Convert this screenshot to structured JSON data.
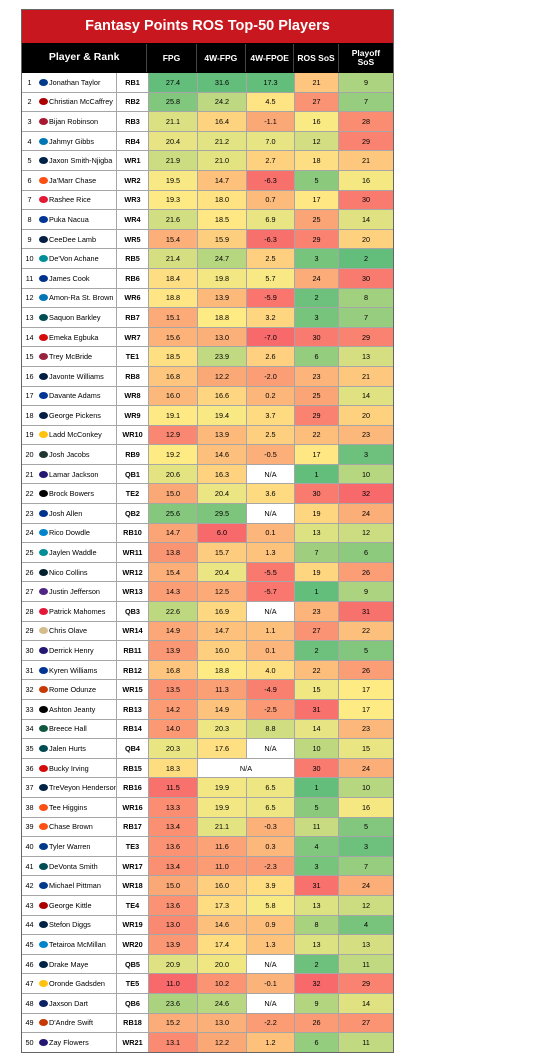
{
  "title": "Fantasy Points ROS Top-50 Players",
  "headers": {
    "player": "Player & Rank",
    "fpg": "FPG",
    "fpg4w": "4W-FPG",
    "fpoe4w": "4W-FPOE",
    "ros_sos": "ROS SoS",
    "playoff_sos_line1": "Playoff",
    "playoff_sos_line2": "SoS"
  },
  "na": "N/A",
  "chart_data": {
    "type": "table",
    "title": "Fantasy Points ROS Top-50 Players",
    "columns": [
      "Rank",
      "Player",
      "Pos",
      "FPG",
      "4W-FPG",
      "4W-FPOE",
      "ROS SoS",
      "Playoff SoS"
    ],
    "rows": [
      {
        "rank": "1",
        "player": "Jonathan Taylor",
        "pos": "RB1",
        "fpg": 27.4,
        "fpg4w": 31.6,
        "fpoe4w": 17.3,
        "ros": 21,
        "ply": 9,
        "logo": "#013a8b"
      },
      {
        "rank": "2",
        "player": "Christian McCaffrey",
        "pos": "RB2",
        "fpg": 25.8,
        "fpg4w": 24.2,
        "fpoe4w": 4.5,
        "ros": 27,
        "ply": 7,
        "logo": "#aa0000"
      },
      {
        "rank": "3",
        "player": "Bijan Robinson",
        "pos": "RB3",
        "fpg": 21.1,
        "fpg4w": 16.4,
        "fpoe4w": -1.1,
        "ros": 16,
        "ply": 28,
        "logo": "#a71930"
      },
      {
        "rank": "4",
        "player": "Jahmyr Gibbs",
        "pos": "RB4",
        "fpg": 20.4,
        "fpg4w": 21.2,
        "fpoe4w": 7.0,
        "ros": 12,
        "ply": 29,
        "logo": "#0076b6"
      },
      {
        "rank": "5",
        "player": "Jaxon Smith-Njigba",
        "pos": "WR1",
        "fpg": 21.9,
        "fpg4w": 21.0,
        "fpoe4w": 2.7,
        "ros": 18,
        "ply": 21,
        "logo": "#002244"
      },
      {
        "rank": "6",
        "player": "Ja'Marr Chase",
        "pos": "WR2",
        "fpg": 19.5,
        "fpg4w": 14.7,
        "fpoe4w": -6.3,
        "ros": 5,
        "ply": 16,
        "logo": "#fb4f14"
      },
      {
        "rank": "7",
        "player": "Rashee Rice",
        "pos": "WR3",
        "fpg": 19.3,
        "fpg4w": 18.0,
        "fpoe4w": 0.7,
        "ros": 17,
        "ply": 30,
        "logo": "#e31837"
      },
      {
        "rank": "8",
        "player": "Puka Nacua",
        "pos": "WR4",
        "fpg": 21.6,
        "fpg4w": 18.5,
        "fpoe4w": 6.9,
        "ros": 25,
        "ply": 14,
        "logo": "#003594"
      },
      {
        "rank": "9",
        "player": "CeeDee Lamb",
        "pos": "WR5",
        "fpg": 15.4,
        "fpg4w": 15.9,
        "fpoe4w": -6.3,
        "ros": 29,
        "ply": 20,
        "logo": "#041e42"
      },
      {
        "rank": "10",
        "player": "De'Von Achane",
        "pos": "RB5",
        "fpg": 21.4,
        "fpg4w": 24.7,
        "fpoe4w": 2.5,
        "ros": 3,
        "ply": 2,
        "logo": "#008e97"
      },
      {
        "rank": "11",
        "player": "James Cook",
        "pos": "RB6",
        "fpg": 18.4,
        "fpg4w": 19.8,
        "fpoe4w": 5.7,
        "ros": 24,
        "ply": 30,
        "logo": "#00338d"
      },
      {
        "rank": "12",
        "player": "Amon-Ra St. Brown",
        "pos": "WR6",
        "fpg": 18.8,
        "fpg4w": 13.9,
        "fpoe4w": -5.9,
        "ros": 2,
        "ply": 8,
        "logo": "#0076b6"
      },
      {
        "rank": "13",
        "player": "Saquon Barkley",
        "pos": "RB7",
        "fpg": 15.1,
        "fpg4w": 18.8,
        "fpoe4w": 3.2,
        "ros": 3,
        "ply": 7,
        "logo": "#004c54"
      },
      {
        "rank": "14",
        "player": "Emeka Egbuka",
        "pos": "WR7",
        "fpg": 15.6,
        "fpg4w": 13.0,
        "fpoe4w": -7.0,
        "ros": 30,
        "ply": 29,
        "logo": "#d50a0a"
      },
      {
        "rank": "15",
        "player": "Trey McBride",
        "pos": "TE1",
        "fpg": 18.5,
        "fpg4w": 23.9,
        "fpoe4w": 2.6,
        "ros": 6,
        "ply": 13,
        "logo": "#97233f"
      },
      {
        "rank": "16",
        "player": "Javonte Williams",
        "pos": "RB8",
        "fpg": 16.8,
        "fpg4w": 12.2,
        "fpoe4w": -2.0,
        "ros": 23,
        "ply": 21,
        "logo": "#041e42"
      },
      {
        "rank": "17",
        "player": "Davante Adams",
        "pos": "WR8",
        "fpg": 16.0,
        "fpg4w": 16.6,
        "fpoe4w": 0.2,
        "ros": 25,
        "ply": 14,
        "logo": "#003594"
      },
      {
        "rank": "18",
        "player": "George Pickens",
        "pos": "WR9",
        "fpg": 19.1,
        "fpg4w": 19.4,
        "fpoe4w": 3.7,
        "ros": 29,
        "ply": 20,
        "logo": "#041e42"
      },
      {
        "rank": "19",
        "player": "Ladd McConkey",
        "pos": "WR10",
        "fpg": 12.9,
        "fpg4w": 13.9,
        "fpoe4w": 2.5,
        "ros": 22,
        "ply": 23,
        "logo": "#ffc20e"
      },
      {
        "rank": "20",
        "player": "Josh Jacobs",
        "pos": "RB9",
        "fpg": 19.2,
        "fpg4w": 14.6,
        "fpoe4w": -0.5,
        "ros": 17,
        "ply": 3,
        "logo": "#203731"
      },
      {
        "rank": "21",
        "player": "Lamar Jackson",
        "pos": "QB1",
        "fpg": 20.6,
        "fpg4w": 16.3,
        "fpoe4w": null,
        "ros": 1,
        "ply": 10,
        "logo": "#241773"
      },
      {
        "rank": "22",
        "player": "Brock Bowers",
        "pos": "TE2",
        "fpg": 15.0,
        "fpg4w": 20.4,
        "fpoe4w": 3.6,
        "ros": 30,
        "ply": 32,
        "logo": "#000000"
      },
      {
        "rank": "23",
        "player": "Josh Allen",
        "pos": "QB2",
        "fpg": 25.6,
        "fpg4w": 29.5,
        "fpoe4w": null,
        "ros": 19,
        "ply": 24,
        "logo": "#00338d"
      },
      {
        "rank": "24",
        "player": "Rico Dowdle",
        "pos": "RB10",
        "fpg": 14.7,
        "fpg4w": 6.0,
        "fpoe4w": 0.1,
        "ros": 13,
        "ply": 12,
        "logo": "#0085ca"
      },
      {
        "rank": "25",
        "player": "Jaylen Waddle",
        "pos": "WR11",
        "fpg": 13.8,
        "fpg4w": 15.7,
        "fpoe4w": 1.3,
        "ros": 7,
        "ply": 6,
        "logo": "#008e97"
      },
      {
        "rank": "26",
        "player": "Nico Collins",
        "pos": "WR12",
        "fpg": 15.4,
        "fpg4w": 20.4,
        "fpoe4w": -5.5,
        "ros": 19,
        "ply": 26,
        "logo": "#03202f"
      },
      {
        "rank": "27",
        "player": "Justin Jefferson",
        "pos": "WR13",
        "fpg": 14.3,
        "fpg4w": 12.5,
        "fpoe4w": -5.7,
        "ros": 1,
        "ply": 9,
        "logo": "#4f2683"
      },
      {
        "rank": "28",
        "player": "Patrick Mahomes",
        "pos": "QB3",
        "fpg": 22.6,
        "fpg4w": 16.9,
        "fpoe4w": null,
        "ros": 23,
        "ply": 31,
        "logo": "#e31837"
      },
      {
        "rank": "29",
        "player": "Chris Olave",
        "pos": "WR14",
        "fpg": 14.9,
        "fpg4w": 14.7,
        "fpoe4w": 1.1,
        "ros": 27,
        "ply": 22,
        "logo": "#d3bc8d"
      },
      {
        "rank": "30",
        "player": "Derrick Henry",
        "pos": "RB11",
        "fpg": 13.9,
        "fpg4w": 16.0,
        "fpoe4w": 0.1,
        "ros": 2,
        "ply": 5,
        "logo": "#241773"
      },
      {
        "rank": "31",
        "player": "Kyren Williams",
        "pos": "RB12",
        "fpg": 16.8,
        "fpg4w": 18.8,
        "fpoe4w": 4.0,
        "ros": 22,
        "ply": 26,
        "logo": "#003594"
      },
      {
        "rank": "32",
        "player": "Rome Odunze",
        "pos": "WR15",
        "fpg": 13.5,
        "fpg4w": 11.3,
        "fpoe4w": -4.9,
        "ros": 15,
        "ply": 17,
        "logo": "#c83803"
      },
      {
        "rank": "33",
        "player": "Ashton Jeanty",
        "pos": "RB13",
        "fpg": 14.2,
        "fpg4w": 14.9,
        "fpoe4w": -2.5,
        "ros": 31,
        "ply": 17,
        "logo": "#000000"
      },
      {
        "rank": "34",
        "player": "Breece Hall",
        "pos": "RB14",
        "fpg": 14.0,
        "fpg4w": 20.3,
        "fpoe4w": 8.8,
        "ros": 14,
        "ply": 23,
        "logo": "#125740"
      },
      {
        "rank": "35",
        "player": "Jalen Hurts",
        "pos": "QB4",
        "fpg": 20.3,
        "fpg4w": 17.6,
        "fpoe4w": null,
        "ros": 10,
        "ply": 15,
        "logo": "#004c54"
      },
      {
        "rank": "36",
        "player": "Bucky Irving",
        "pos": "RB15",
        "fpg": 18.3,
        "fpg4w": null,
        "fpoe4w": null,
        "ros": 30,
        "ply": 24,
        "logo": "#d50a0a"
      },
      {
        "rank": "37",
        "player": "TreVeyon Henderson",
        "pos": "RB16",
        "fpg": 11.5,
        "fpg4w": 19.9,
        "fpoe4w": 6.5,
        "ros": 1,
        "ply": 10,
        "logo": "#002244"
      },
      {
        "rank": "38",
        "player": "Tee Higgins",
        "pos": "WR16",
        "fpg": 13.3,
        "fpg4w": 19.9,
        "fpoe4w": 6.5,
        "ros": 5,
        "ply": 16,
        "logo": "#fb4f14"
      },
      {
        "rank": "39",
        "player": "Chase Brown",
        "pos": "RB17",
        "fpg": 13.4,
        "fpg4w": 21.1,
        "fpoe4w": -0.3,
        "ros": 11,
        "ply": 5,
        "logo": "#fb4f14"
      },
      {
        "rank": "40",
        "player": "Tyler Warren",
        "pos": "TE3",
        "fpg": 13.6,
        "fpg4w": 11.6,
        "fpoe4w": 0.3,
        "ros": 4,
        "ply": 3,
        "logo": "#013a8b"
      },
      {
        "rank": "41",
        "player": "DeVonta Smith",
        "pos": "WR17",
        "fpg": 13.4,
        "fpg4w": 11.0,
        "fpoe4w": -2.3,
        "ros": 3,
        "ply": 7,
        "logo": "#004c54"
      },
      {
        "rank": "42",
        "player": "Michael Pittman",
        "pos": "WR18",
        "fpg": 15.0,
        "fpg4w": 16.0,
        "fpoe4w": 3.9,
        "ros": 31,
        "ply": 24,
        "logo": "#013a8b"
      },
      {
        "rank": "43",
        "player": "George Kittle",
        "pos": "TE4",
        "fpg": 13.6,
        "fpg4w": 17.3,
        "fpoe4w": 5.8,
        "ros": 13,
        "ply": 12,
        "logo": "#aa0000"
      },
      {
        "rank": "44",
        "player": "Stefon Diggs",
        "pos": "WR19",
        "fpg": 13.0,
        "fpg4w": 14.6,
        "fpoe4w": 0.9,
        "ros": 8,
        "ply": 4,
        "logo": "#002244"
      },
      {
        "rank": "45",
        "player": "Tetairoa McMillan",
        "pos": "WR20",
        "fpg": 13.9,
        "fpg4w": 17.4,
        "fpoe4w": 1.3,
        "ros": 13,
        "ply": 13,
        "logo": "#0085ca"
      },
      {
        "rank": "46",
        "player": "Drake Maye",
        "pos": "QB5",
        "fpg": 20.9,
        "fpg4w": 20.0,
        "fpoe4w": null,
        "ros": 2,
        "ply": 11,
        "logo": "#002244"
      },
      {
        "rank": "47",
        "player": "Oronde Gadsden",
        "pos": "TE5",
        "fpg": 11.0,
        "fpg4w": 10.2,
        "fpoe4w": -0.1,
        "ros": 32,
        "ply": 29,
        "logo": "#ffc20e"
      },
      {
        "rank": "48",
        "player": "Jaxson Dart",
        "pos": "QB6",
        "fpg": 23.6,
        "fpg4w": 24.6,
        "fpoe4w": null,
        "ros": 9,
        "ply": 14,
        "logo": "#0b2265"
      },
      {
        "rank": "49",
        "player": "D'Andre Swift",
        "pos": "RB18",
        "fpg": 15.2,
        "fpg4w": 13.0,
        "fpoe4w": -2.2,
        "ros": 26,
        "ply": 27,
        "logo": "#c83803"
      },
      {
        "rank": "50",
        "player": "Zay Flowers",
        "pos": "WR21",
        "fpg": 13.1,
        "fpg4w": 12.2,
        "fpoe4w": 1.2,
        "ros": 6,
        "ply": 11,
        "logo": "#241773"
      }
    ]
  },
  "colors": {
    "green": "#63be7b",
    "yellow": "#ffeb84",
    "red": "#f8696b",
    "title_bg": "#c8171e",
    "header_bg": "#000000"
  }
}
